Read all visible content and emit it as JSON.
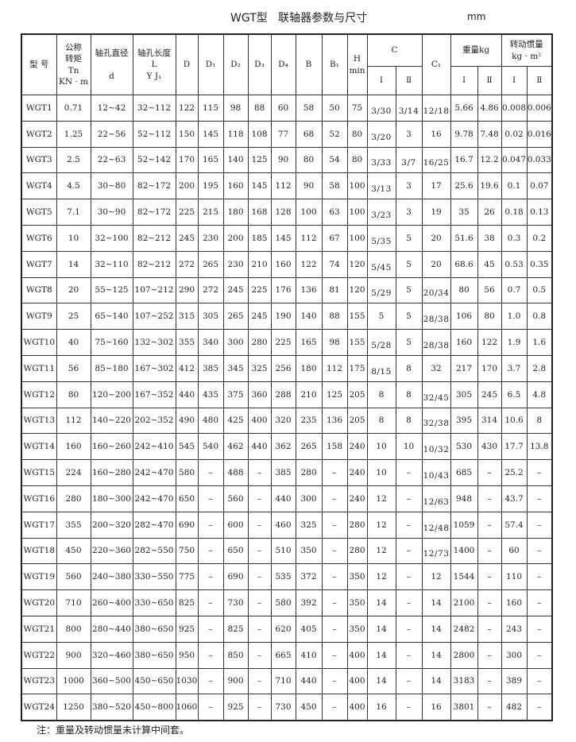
{
  "title": "WGT型   联轴器参数与尺寸",
  "unit": "mm",
  "header": {
    "model": "型  号",
    "torque": [
      "公称",
      "转矩",
      "Tn",
      "KN · m"
    ],
    "bore_d": [
      "轴孔直径",
      "d"
    ],
    "bore_l": [
      "轴孔长度",
      "L",
      "Y  J₁"
    ],
    "D": "D",
    "D1": "D₁",
    "D2": "D₂",
    "D3": "D₃",
    "D4": "D₄",
    "B": "B",
    "B1": "B₁",
    "H": [
      "H",
      "min"
    ],
    "C": "C",
    "C1": "C₁",
    "weight": "重量kg",
    "inertia": [
      "转动惯量",
      "kg · m²"
    ],
    "sub_I": "Ⅰ",
    "sub_II": "Ⅱ"
  },
  "rows": [
    [
      "WGT1",
      "0.71",
      "12~42",
      "32~112",
      "122",
      "115",
      "98",
      "88",
      "60",
      "58",
      "50",
      "75",
      "3/30",
      "3/14",
      "12/18",
      "5.66",
      "4.86",
      "0.008",
      "0.006"
    ],
    [
      "WGT2",
      "1.25",
      "22~56",
      "52~112",
      "150",
      "145",
      "118",
      "108",
      "77",
      "68",
      "52",
      "80",
      "3/20",
      "3",
      "16",
      "9.78",
      "7.48",
      "0.02",
      "0.016"
    ],
    [
      "WGT3",
      "2.5",
      "22~63",
      "52~142",
      "170",
      "165",
      "140",
      "125",
      "90",
      "80",
      "54",
      "80",
      "3/33",
      "3/7",
      "16/25",
      "16.7",
      "12.2",
      "0.047",
      "0.033"
    ],
    [
      "WGT4",
      "4.5",
      "30~80",
      "82~172",
      "200",
      "195",
      "160",
      "145",
      "112",
      "90",
      "58",
      "100",
      "3/13",
      "3",
      "17",
      "25.6",
      "19.6",
      "0.1",
      "0.07"
    ],
    [
      "WGT5",
      "7.1",
      "30~90",
      "82~172",
      "225",
      "215",
      "180",
      "168",
      "128",
      "100",
      "63",
      "100",
      "3/23",
      "3",
      "19",
      "35",
      "26",
      "0.18",
      "0.13"
    ],
    [
      "WGT6",
      "10",
      "32~100",
      "82~212",
      "245",
      "230",
      "200",
      "185",
      "145",
      "112",
      "67",
      "100",
      "5/35",
      "5",
      "20",
      "51.6",
      "38",
      "0.3",
      "0.2"
    ],
    [
      "WGT7",
      "14",
      "32~110",
      "82~212",
      "272",
      "265",
      "230",
      "210",
      "160",
      "122",
      "74",
      "120",
      "5/45",
      "5",
      "20",
      "68.6",
      "45",
      "0.53",
      "0.35"
    ],
    [
      "WGT8",
      "20",
      "55~125",
      "107~212",
      "290",
      "272",
      "245",
      "225",
      "176",
      "136",
      "81",
      "120",
      "5/29",
      "5",
      "20/34",
      "80",
      "56",
      "0.7",
      "0.5"
    ],
    [
      "WGT9",
      "25",
      "65~140",
      "107~252",
      "315",
      "305",
      "265",
      "245",
      "190",
      "140",
      "88",
      "155",
      "5",
      "5",
      "28/38",
      "106",
      "80",
      "1.0",
      "0.8"
    ],
    [
      "WGT10",
      "40",
      "75~160",
      "132~302",
      "355",
      "340",
      "300",
      "280",
      "225",
      "165",
      "98",
      "155",
      "5/28",
      "5",
      "28/38",
      "160",
      "122",
      "1.9",
      "1.6"
    ],
    [
      "WGT11",
      "56",
      "85~180",
      "167~302",
      "412",
      "385",
      "345",
      "325",
      "256",
      "180",
      "112",
      "175",
      "8/15",
      "8",
      "32",
      "217",
      "170",
      "3.7",
      "2.8"
    ],
    [
      "WGT12",
      "80",
      "120~200",
      "167~352",
      "440",
      "435",
      "375",
      "360",
      "288",
      "210",
      "125",
      "205",
      "8",
      "8",
      "32/45",
      "305",
      "245",
      "6.5",
      "4.8"
    ],
    [
      "WGT13",
      "112",
      "140~220",
      "202~352",
      "490",
      "480",
      "425",
      "400",
      "320",
      "235",
      "136",
      "205",
      "8",
      "8",
      "32/38",
      "395",
      "314",
      "10.6",
      "8"
    ],
    [
      "WGT14",
      "160",
      "160~260",
      "242~410",
      "545",
      "540",
      "462",
      "440",
      "362",
      "265",
      "158",
      "240",
      "10",
      "10",
      "10/32",
      "530",
      "430",
      "17.7",
      "13.8"
    ],
    [
      "WGT15",
      "224",
      "160~280",
      "242~470",
      "580",
      "–",
      "488",
      "–",
      "385",
      "280",
      "–",
      "240",
      "10",
      "–",
      "10/43",
      "685",
      "–",
      "25.2",
      "–"
    ],
    [
      "WGT16",
      "280",
      "180~300",
      "242~470",
      "650",
      "–",
      "560",
      "–",
      "440",
      "300",
      "–",
      "240",
      "12",
      "–",
      "12/63",
      "948",
      "–",
      "43.7",
      "–"
    ],
    [
      "WGT17",
      "355",
      "200~320",
      "282~470",
      "690",
      "–",
      "600",
      "–",
      "460",
      "325",
      "–",
      "280",
      "12",
      "–",
      "12/48",
      "1059",
      "–",
      "57.4",
      "–"
    ],
    [
      "WGT18",
      "450",
      "220~360",
      "282~550",
      "750",
      "–",
      "650",
      "–",
      "510",
      "350",
      "–",
      "280",
      "12",
      "–",
      "12/73",
      "1400",
      "–",
      "60",
      "–"
    ],
    [
      "WGT19",
      "560",
      "240~380",
      "330~550",
      "775",
      "–",
      "690",
      "–",
      "535",
      "372",
      "–",
      "350",
      "12",
      "–",
      "12",
      "1544",
      "–",
      "110",
      "–"
    ],
    [
      "WGT20",
      "710",
      "260~400",
      "330~650",
      "825",
      "–",
      "730",
      "–",
      "580",
      "392",
      "–",
      "350",
      "14",
      "–",
      "14",
      "2100",
      "–",
      "160",
      "–"
    ],
    [
      "WGT21",
      "800",
      "280~440",
      "380~650",
      "925",
      "–",
      "825",
      "–",
      "620",
      "405",
      "–",
      "350",
      "14",
      "–",
      "14",
      "2482",
      "–",
      "243",
      "–"
    ],
    [
      "WGT22",
      "900",
      "320~460",
      "380~650",
      "950",
      "–",
      "850",
      "–",
      "665",
      "410",
      "–",
      "400",
      "14",
      "–",
      "14",
      "2800",
      "–",
      "300",
      "–"
    ],
    [
      "WGT23",
      "1000",
      "360~500",
      "450~650",
      "1030",
      "–",
      "900",
      "–",
      "710",
      "440",
      "–",
      "400",
      "14",
      "–",
      "14",
      "3183",
      "–",
      "389",
      "–"
    ],
    [
      "WGT24",
      "1250",
      "380~520",
      "450~800",
      "1060",
      "–",
      "925",
      "–",
      "730",
      "450",
      "–",
      "400",
      "16",
      "–",
      "16",
      "3801",
      "–",
      "482",
      "–"
    ]
  ],
  "note": "注：重量及转动惯量未计算中间套。"
}
